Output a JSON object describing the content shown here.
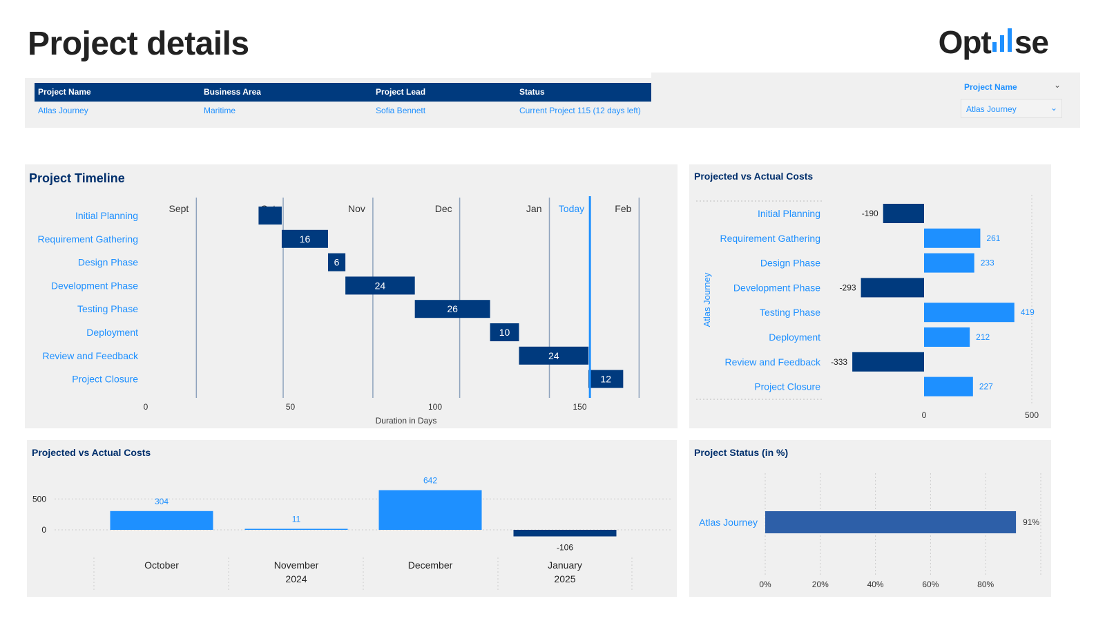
{
  "page_title": "Project details",
  "logo": {
    "prefix": "Opt",
    "suffix": "se",
    "bar_color": "#1e90ff"
  },
  "project_table": {
    "headers": [
      "Project Name",
      "Business Area",
      "Project Lead",
      "Status"
    ],
    "row": [
      "Atlas Journey",
      "Maritime",
      "Sofia Bennett",
      "Current Project 115 (12 days left)"
    ]
  },
  "slicer": {
    "label": "Project Name",
    "selected": "Atlas Journey"
  },
  "colors": {
    "dark_navy": "#003a7e",
    "bright_blue": "#1e90ff",
    "status_blue": "#2d5fa8",
    "title_navy": "#002f6c"
  },
  "timeline": {
    "title": "Project Timeline",
    "xlabel": "Duration in Days",
    "x_ticks": [
      0,
      50,
      100,
      150
    ],
    "xlim": [
      0,
      180
    ],
    "months": [
      {
        "label": "Sept",
        "line": 17.5
      },
      {
        "label": "Oct",
        "line": 47.5
      },
      {
        "label": "Nov",
        "line": 78.5
      },
      {
        "label": "Dec",
        "line": 108.5
      },
      {
        "label": "Jan",
        "line": 139.5
      },
      {
        "label": "Feb",
        "line": 170.5
      }
    ],
    "today": {
      "label": "Today",
      "day": 153.5
    }
  },
  "chart_data": [
    {
      "type": "bar",
      "orientation": "horizontal-gantt",
      "title": "Project Timeline",
      "xlabel": "Duration in Days",
      "categories": [
        "Initial Planning",
        "Requirement Gathering",
        "Design Phase",
        "Development Phase",
        "Testing Phase",
        "Deployment",
        "Review and Feedback",
        "Project Closure"
      ],
      "start": [
        39,
        47,
        63,
        69,
        93,
        119,
        129,
        153
      ],
      "duration": [
        8,
        16,
        6,
        24,
        26,
        10,
        24,
        12
      ],
      "labels": [
        "",
        "16",
        "6",
        "24",
        "26",
        "10",
        "24",
        "12"
      ],
      "xlim": [
        0,
        180
      ]
    },
    {
      "type": "bar",
      "orientation": "horizontal",
      "title": "Projected vs Actual Costs",
      "ylabel": "Atlas Journey",
      "categories": [
        "Initial Planning",
        "Requirement Gathering",
        "Design Phase",
        "Development Phase",
        "Testing Phase",
        "Deployment",
        "Review and Feedback",
        "Project Closure"
      ],
      "values": [
        -190,
        261,
        233,
        -293,
        419,
        212,
        -333,
        227
      ],
      "x_ticks": [
        0,
        500
      ],
      "xlim": [
        -420,
        500
      ]
    },
    {
      "type": "bar",
      "title": "Projected vs Actual Costs",
      "categories": [
        "October",
        "November",
        "December",
        "January"
      ],
      "year_labels": [
        "2024",
        "2025"
      ],
      "values": [
        304,
        11,
        642,
        -106
      ],
      "y_ticks": [
        500,
        0
      ],
      "ylim": [
        -160,
        800
      ]
    },
    {
      "type": "bar",
      "orientation": "horizontal",
      "title": "Project Status (in %)",
      "categories": [
        "Atlas Journey"
      ],
      "values": [
        91
      ],
      "value_labels": [
        "91%"
      ],
      "x_ticks": [
        "0%",
        "20%",
        "40%",
        "60%",
        "80%"
      ],
      "xlim": [
        0,
        100
      ]
    }
  ]
}
